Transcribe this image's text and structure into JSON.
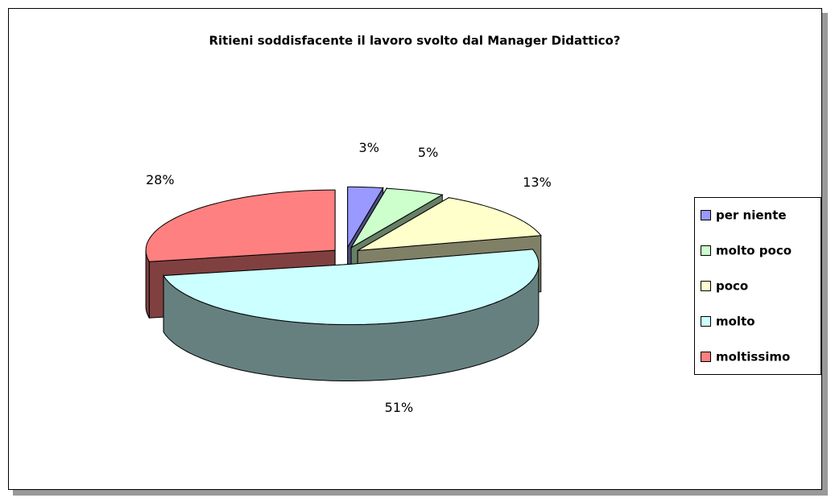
{
  "chart_data": {
    "type": "pie",
    "title": "Ritieni soddisfacente il lavoro svolto dal Manager Didattico?",
    "categories": [
      "per niente",
      "molto poco",
      "poco",
      "molto",
      "moltissimo"
    ],
    "values": [
      3,
      5,
      13,
      51,
      28
    ],
    "value_labels": [
      "3%",
      "5%",
      "13%",
      "51%",
      "28%"
    ],
    "colors": [
      "#9999ff",
      "#ccffcc",
      "#ffffcc",
      "#ccffff",
      "#ff8080"
    ],
    "legend": "right"
  }
}
